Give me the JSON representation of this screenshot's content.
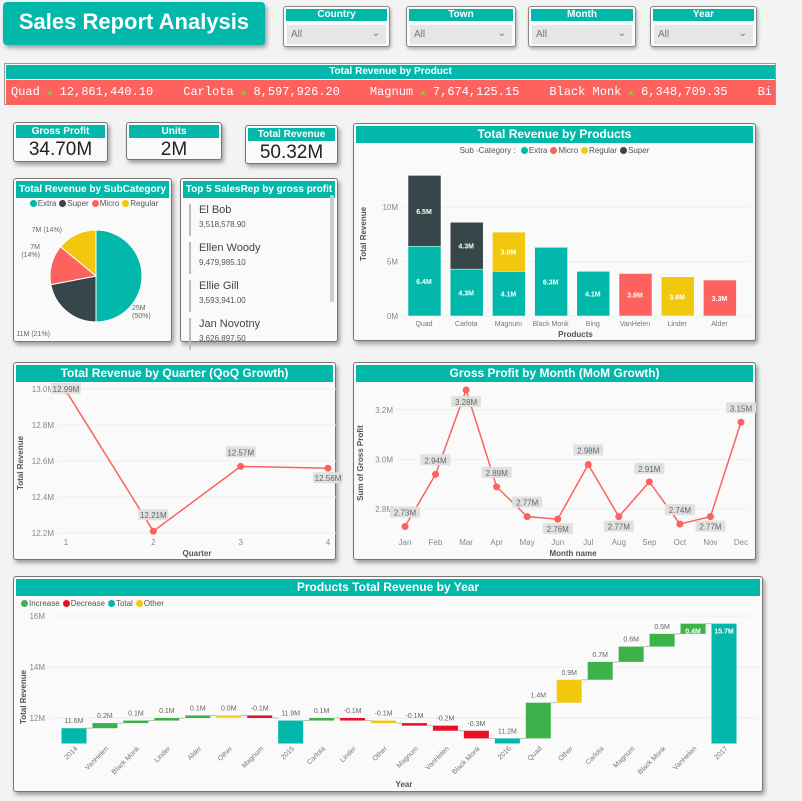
{
  "title": "Sales Report Analysis",
  "slicers": [
    {
      "label": "Country",
      "value": "All"
    },
    {
      "label": "Town",
      "value": "All"
    },
    {
      "label": "Month",
      "value": "All"
    },
    {
      "label": "Year",
      "value": "All"
    }
  ],
  "ticker": {
    "title": "Total Revenue by Product",
    "items": [
      {
        "name": "Quad",
        "value": "12,861,440.10"
      },
      {
        "name": "Carlota",
        "value": "8,597,926.20"
      },
      {
        "name": "Magnum",
        "value": "7,674,125.15"
      },
      {
        "name": "Black Monk",
        "value": "6,348,709.35"
      },
      {
        "name": "Bi",
        "value": ""
      }
    ],
    "up_icon": "triangle-up-icon",
    "band_color": "#FD625E"
  },
  "kpis": [
    {
      "label": "Gross Profit",
      "value": "34.70M"
    },
    {
      "label": "Units",
      "value": "2M"
    },
    {
      "label": "Total Revenue",
      "value": "50.32M"
    }
  ],
  "top_reps": {
    "title": "Top 5 SalesRep by gross profit",
    "items": [
      {
        "name": "El Bob",
        "value": "3,518,578.90"
      },
      {
        "name": "Ellen Woody",
        "value": "9,479,985.10"
      },
      {
        "name": "Ellie Gill",
        "value": "3,593,941.00"
      },
      {
        "name": "Jan Novotny",
        "value": "3,626,897.50"
      }
    ]
  },
  "colors": {
    "Extra": "#01B8AA",
    "Super": "#374649",
    "Micro": "#FD625E",
    "Regular": "#F2C80F",
    "accent": "#01B8AA",
    "Increase": "#3DB24B",
    "Decrease": "#E81123",
    "Total": "#01B8AA",
    "Other": "#F2C80F",
    "line": "#FD625E"
  },
  "chart_data": [
    {
      "id": "pie",
      "type": "pie",
      "title": "Total Revenue by SubCategory",
      "legend": [
        "Extra",
        "Super",
        "Micro",
        "Regular"
      ],
      "slices": [
        {
          "name": "Extra",
          "value": 25,
          "label": "25M (50%)"
        },
        {
          "name": "Super",
          "value": 11,
          "label": "11M (21%)"
        },
        {
          "name": "Micro",
          "value": 7,
          "label": "7M (14%)"
        },
        {
          "name": "Regular",
          "value": 7,
          "label": "7M (14%)"
        }
      ]
    },
    {
      "id": "bar",
      "type": "bar",
      "title": "Total Revenue by Products",
      "stacked": true,
      "legend_title": "Sub -Category :",
      "legend": [
        "Extra",
        "Micro",
        "Regular",
        "Super"
      ],
      "xlabel": "Products",
      "ylabel": "Total Revenue",
      "ylim": [
        0,
        13
      ],
      "yticks": [
        {
          "v": 0,
          "label": "0M"
        },
        {
          "v": 5,
          "label": "5M"
        },
        {
          "v": 10,
          "label": "10M"
        }
      ],
      "categories": [
        "Quad",
        "Carlota",
        "Magnum",
        "Black Monk",
        "Bing",
        "VanHelen",
        "Linder",
        "Alder"
      ],
      "stacks": [
        [
          {
            "s": "Extra",
            "v": 6.4,
            "label": "6.4M"
          },
          {
            "s": "Super",
            "v": 6.5,
            "label": "6.5M"
          }
        ],
        [
          {
            "s": "Extra",
            "v": 4.3,
            "label": "4.3M"
          },
          {
            "s": "Super",
            "v": 4.3,
            "label": "4.3M"
          }
        ],
        [
          {
            "s": "Extra",
            "v": 4.1,
            "label": "4.1M"
          },
          {
            "s": "Regular",
            "v": 3.6,
            "label": "3.6M"
          }
        ],
        [
          {
            "s": "Extra",
            "v": 6.3,
            "label": "6.3M"
          }
        ],
        [
          {
            "s": "Extra",
            "v": 4.1,
            "label": "4.1M"
          }
        ],
        [
          {
            "s": "Micro",
            "v": 3.9,
            "label": "3.9M"
          }
        ],
        [
          {
            "s": "Regular",
            "v": 3.6,
            "label": "3.6M"
          }
        ],
        [
          {
            "s": "Micro",
            "v": 3.3,
            "label": "3.3M"
          }
        ]
      ]
    },
    {
      "id": "qoq",
      "type": "line",
      "title": "Total Revenue by Quarter (QoQ Growth)",
      "xlabel": "Quarter",
      "ylabel": "Total Revenue",
      "ylim": [
        12.2,
        13.0
      ],
      "yticks": [
        {
          "v": 12.2,
          "label": "12.2M"
        },
        {
          "v": 12.4,
          "label": "12.4M"
        },
        {
          "v": 12.6,
          "label": "12.6M"
        },
        {
          "v": 12.8,
          "label": "12.8M"
        },
        {
          "v": 13.0,
          "label": "13.0M"
        }
      ],
      "categories": [
        "1",
        "2",
        "3",
        "4"
      ],
      "values": [
        12.99,
        12.21,
        12.57,
        12.56
      ],
      "labels": [
        "12.99M",
        "12.21M",
        "12.57M",
        "12.56M"
      ]
    },
    {
      "id": "mom",
      "type": "line",
      "title": "Gross Profit by Month (MoM Growth)",
      "xlabel": "Month name",
      "ylabel": "Sum of Gross Profit",
      "ylim": [
        2.7,
        3.3
      ],
      "yticks": [
        {
          "v": 2.8,
          "label": "2.8M"
        },
        {
          "v": 3.0,
          "label": "3.0M"
        },
        {
          "v": 3.2,
          "label": "3.2M"
        }
      ],
      "categories": [
        "Jan",
        "Feb",
        "Mar",
        "Apr",
        "May",
        "Jun",
        "Jul",
        "Aug",
        "Sep",
        "Oct",
        "Nov",
        "Dec"
      ],
      "values": [
        2.73,
        2.94,
        3.28,
        2.89,
        2.77,
        2.76,
        2.98,
        2.77,
        2.91,
        2.74,
        2.77,
        3.15
      ],
      "labels": [
        "2.73M",
        "2.94M",
        "3.28M",
        "2.89M",
        "2.77M",
        "2.76M",
        "2.98M",
        "2.77M",
        "2.91M",
        "2.74M",
        "2.77M",
        "3.15M"
      ]
    },
    {
      "id": "wf",
      "type": "waterfall",
      "title": "Products Total Revenue by Year",
      "legend": [
        "Increase",
        "Decrease",
        "Total",
        "Other"
      ],
      "xlabel": "Year",
      "ylabel": "Total Revenue",
      "ylim": [
        11,
        16
      ],
      "yticks": [
        {
          "v": 12,
          "label": "12M"
        },
        {
          "v": 14,
          "label": "14M"
        },
        {
          "v": 16,
          "label": "16M"
        }
      ],
      "steps": [
        {
          "x": "2014",
          "t": "Total",
          "v": 11.6,
          "label": "11.6M"
        },
        {
          "x": "VanHelen",
          "t": "Increase",
          "v": 0.2,
          "label": "0.2M"
        },
        {
          "x": "Black Monk",
          "t": "Increase",
          "v": 0.1,
          "label": "0.1M"
        },
        {
          "x": "Linder",
          "t": "Increase",
          "v": 0.1,
          "label": "0.1M"
        },
        {
          "x": "Alder",
          "t": "Increase",
          "v": 0.1,
          "label": "0.1M"
        },
        {
          "x": "Other",
          "t": "Other",
          "v": 0.0,
          "label": "0.0M"
        },
        {
          "x": "Magnum",
          "t": "Decrease",
          "v": -0.1,
          "label": "-0.1M"
        },
        {
          "x": "2015",
          "t": "Total",
          "v": 11.9,
          "label": "11.9M"
        },
        {
          "x": "Carlota",
          "t": "Increase",
          "v": 0.1,
          "label": "0.1M"
        },
        {
          "x": "Linder",
          "t": "Decrease",
          "v": -0.1,
          "label": "-0.1M"
        },
        {
          "x": "Other",
          "t": "Other",
          "v": -0.1,
          "label": "-0.1M"
        },
        {
          "x": "Magnum",
          "t": "Decrease",
          "v": -0.1,
          "label": "-0.1M"
        },
        {
          "x": "VanHelen",
          "t": "Decrease",
          "v": -0.2,
          "label": "-0.2M"
        },
        {
          "x": "Black Monk",
          "t": "Decrease",
          "v": -0.3,
          "label": "-0.3M"
        },
        {
          "x": "2016",
          "t": "Total",
          "v": 11.2,
          "label": "11.2M"
        },
        {
          "x": "Quad",
          "t": "Increase",
          "v": 1.4,
          "label": "1.4M"
        },
        {
          "x": "Other",
          "t": "Other",
          "v": 0.9,
          "label": "0.9M"
        },
        {
          "x": "Carlota",
          "t": "Increase",
          "v": 0.7,
          "label": "0.7M"
        },
        {
          "x": "Magnum",
          "t": "Increase",
          "v": 0.6,
          "label": "0.6M"
        },
        {
          "x": "Black Monk",
          "t": "Increase",
          "v": 0.5,
          "label": "0.5M"
        },
        {
          "x": "VanHelen",
          "t": "Increase",
          "v": 0.4,
          "label": "0.4M"
        },
        {
          "x": "2017",
          "t": "Total",
          "v": 15.7,
          "label": "15.7M"
        }
      ]
    }
  ]
}
